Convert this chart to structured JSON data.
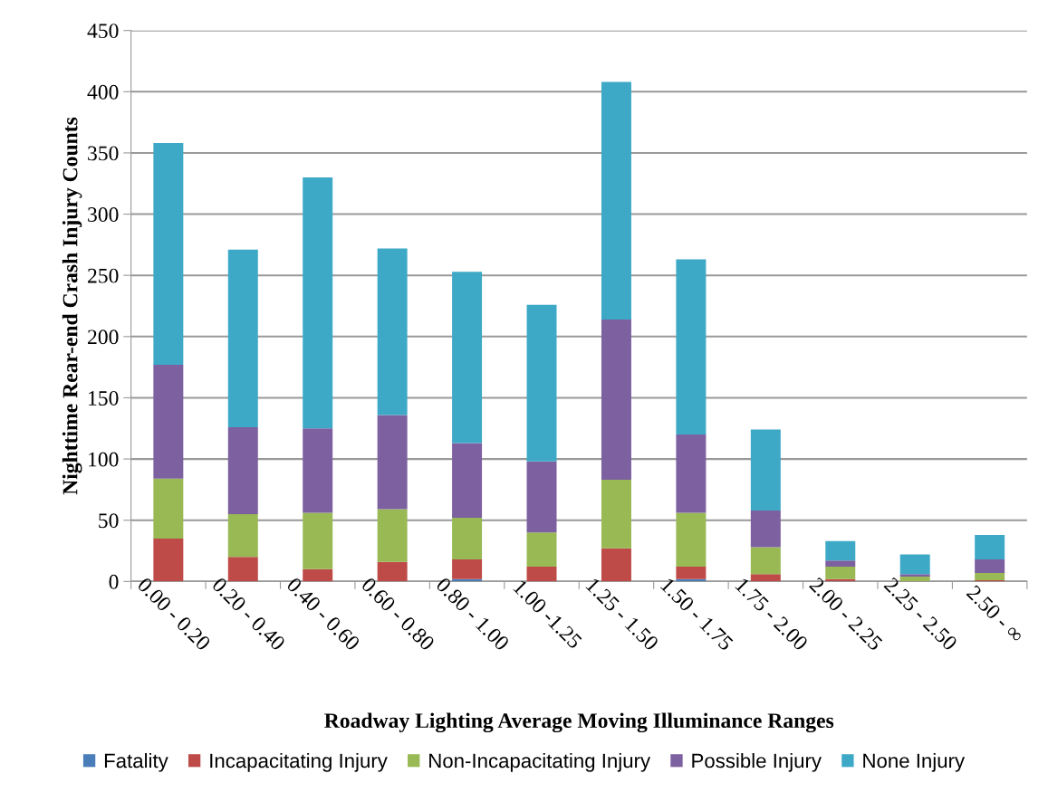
{
  "chart_data": {
    "type": "bar",
    "stacked": true,
    "xlabel": "Roadway Lighting Average Moving Illuminance Ranges",
    "ylabel": "Nighttime Rear-end Crash Injury Counts",
    "categories": [
      "0.00 - 0.20",
      "0.20 - 0.40",
      "0.40 - 0.60",
      "0.60 - 0.80",
      "0.80 - 1.00",
      "1.00 -1.25",
      "1.25 - 1.50",
      "1.50 - 1.75",
      "1.75 - 2.00",
      "2.00 - 2.25",
      "2.25 - 2.50",
      "2.50 - ∞"
    ],
    "series": [
      {
        "name": "Fatality",
        "color": "#4a7ebb",
        "values": [
          0,
          0,
          0,
          0,
          2,
          0,
          0,
          2,
          0,
          0,
          0,
          0
        ]
      },
      {
        "name": "Incapacitating Injury",
        "color": "#be4b48",
        "values": [
          35,
          20,
          10,
          16,
          16,
          12,
          27,
          10,
          6,
          2,
          0,
          1
        ]
      },
      {
        "name": "Non-Incapacitating Injury",
        "color": "#98b954",
        "values": [
          49,
          35,
          46,
          43,
          34,
          28,
          56,
          44,
          22,
          10,
          4,
          6
        ]
      },
      {
        "name": "Possible Injury",
        "color": "#7d60a0",
        "values": [
          93,
          71,
          69,
          77,
          61,
          58,
          131,
          64,
          30,
          5,
          2,
          11
        ]
      },
      {
        "name": "None Injury",
        "color": "#3ea9c6",
        "values": [
          181,
          145,
          205,
          136,
          140,
          128,
          194,
          143,
          66,
          16,
          16,
          20
        ]
      }
    ],
    "ylim": [
      0,
      450
    ],
    "yticks": [
      0,
      50,
      100,
      150,
      200,
      250,
      300,
      350,
      400,
      450
    ],
    "grid": "y",
    "legend": "bottom"
  }
}
